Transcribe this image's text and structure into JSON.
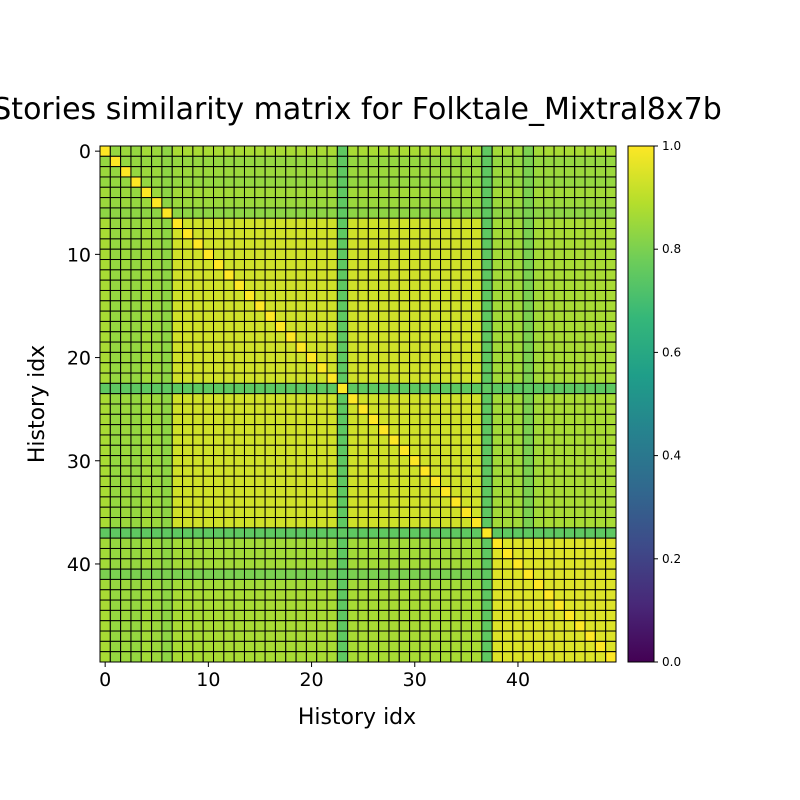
{
  "chart_data": {
    "type": "heatmap",
    "title": "Stories similarity matrix for Folktale_Mixtral8x7b",
    "xlabel": "History idx",
    "ylabel": "History idx",
    "n": 50,
    "x_ticks": [
      0,
      10,
      20,
      30,
      40
    ],
    "y_ticks": [
      0,
      10,
      20,
      30,
      40
    ],
    "colorbar": {
      "cmap": "viridis",
      "min": 0.0,
      "max": 1.0,
      "ticks": [
        "0.0",
        "0.2",
        "0.4",
        "0.6",
        "0.8",
        "1.0"
      ]
    },
    "cell_border_color": "#000000",
    "row_base_similarity": [
      0.87,
      0.84,
      0.85,
      0.84,
      0.86,
      0.85,
      0.83,
      0.9,
      0.9,
      0.9,
      0.9,
      0.91,
      0.9,
      0.9,
      0.9,
      0.88,
      0.9,
      0.91,
      0.9,
      0.9,
      0.9,
      0.89,
      0.89,
      0.78,
      0.9,
      0.91,
      0.9,
      0.9,
      0.91,
      0.91,
      0.9,
      0.9,
      0.9,
      0.9,
      0.9,
      0.9,
      0.88,
      0.78,
      0.86,
      0.86,
      0.86,
      0.8,
      0.86,
      0.87,
      0.87,
      0.87,
      0.87,
      0.87,
      0.87,
      0.87
    ],
    "outlier_indices": [
      23,
      37
    ],
    "cluster_block": {
      "start": 37,
      "end": 49,
      "similarity": 0.95
    },
    "core_block": {
      "start": 7,
      "end": 36,
      "similarity": 0.93
    },
    "outlier_similarity": 0.75,
    "diagonal": 1.0
  }
}
